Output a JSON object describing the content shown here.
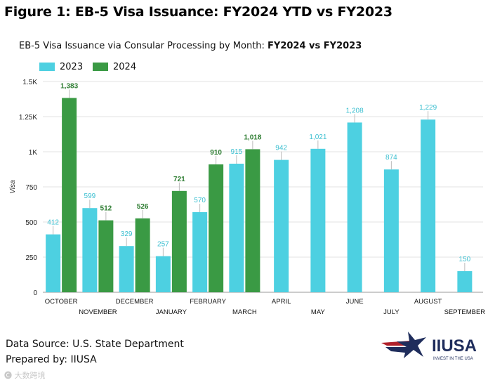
{
  "figure_title": "Figure 1: EB-5 Visa Issuance: FY2024 YTD vs FY2023",
  "footer": {
    "source": "Data Source: U.S. State Department",
    "prepared": "Prepared by: IIUSA"
  },
  "logo": {
    "text": "IIUSA",
    "tagline": "INVEST IN THE USA"
  },
  "watermark": "大数跨境",
  "colors": {
    "series_2023": "#4dd0e1",
    "series_2024": "#3a9a44",
    "label_2024": "#2e7d32"
  },
  "chart_data": {
    "type": "bar",
    "title": "EB-5 Visa Issuance via Consular Processing by Month: ",
    "title_bold": "FY2024 vs FY2023",
    "ylabel": "Visa",
    "xlabel": "",
    "ylim": [
      0,
      1500
    ],
    "yticks": [
      0,
      250,
      500,
      750,
      1000,
      1250,
      1500
    ],
    "ytick_labels": [
      "0",
      "250",
      "500",
      "750",
      "1K",
      "1.25K",
      "1.5K"
    ],
    "grid": true,
    "legend_position": "top-left",
    "categories": [
      "OCTOBER",
      "NOVEMBER",
      "DECEMBER",
      "JANUARY",
      "FEBRUARY",
      "MARCH",
      "APRIL",
      "MAY",
      "JUNE",
      "JULY",
      "AUGUST",
      "SEPTEMBER"
    ],
    "series": [
      {
        "name": "2023",
        "values": [
          412,
          599,
          329,
          257,
          570,
          915,
          942,
          1021,
          1208,
          874,
          1229,
          150
        ],
        "labels": [
          "412",
          "599",
          "329",
          "257",
          "570",
          "915",
          "942",
          "1,021",
          "1,208",
          "874",
          "1,229",
          "150"
        ]
      },
      {
        "name": "2024",
        "values": [
          1383,
          512,
          526,
          721,
          910,
          1018,
          null,
          null,
          null,
          null,
          null,
          null
        ],
        "labels": [
          "1,383",
          "512",
          "526",
          "721",
          "910",
          "1,018",
          null,
          null,
          null,
          null,
          null,
          null
        ]
      }
    ]
  }
}
